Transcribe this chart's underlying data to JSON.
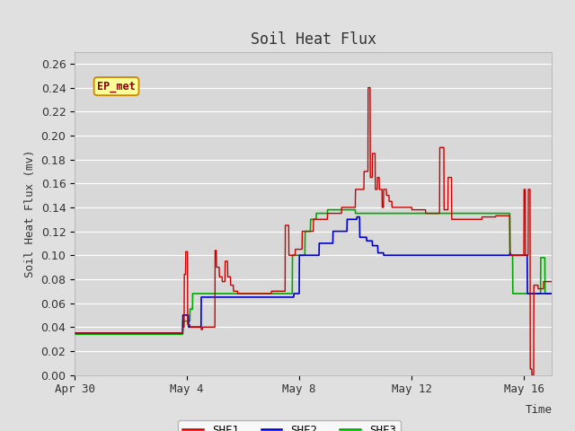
{
  "title": "Soil Heat Flux",
  "ylabel": "Soil Heat Flux (mv)",
  "xlabel": "Time",
  "ylim": [
    0.0,
    0.27
  ],
  "yticks": [
    0.0,
    0.02,
    0.04,
    0.06,
    0.08,
    0.1,
    0.12,
    0.14,
    0.16,
    0.18,
    0.2,
    0.22,
    0.24,
    0.26
  ],
  "bg_color": "#e0e0e0",
  "plot_bg_color": "#d8d8d8",
  "shf1_color": "#cc0000",
  "shf2_color": "#0000cc",
  "shf3_color": "#00aa00",
  "legend_label1": "SHF1",
  "legend_label2": "SHF2",
  "legend_label3": "SHF3",
  "ep_met_label": "EP_met",
  "ep_met_facecolor": "#ffff99",
  "ep_met_edgecolor": "#cc8800",
  "ep_met_textcolor": "#880000",
  "xtick_labels": [
    "Apr 30",
    "May 4",
    "May 8",
    "May 12",
    "May 16"
  ],
  "font_family": "monospace",
  "title_fontsize": 12,
  "axis_fontsize": 9,
  "tick_fontsize": 9
}
